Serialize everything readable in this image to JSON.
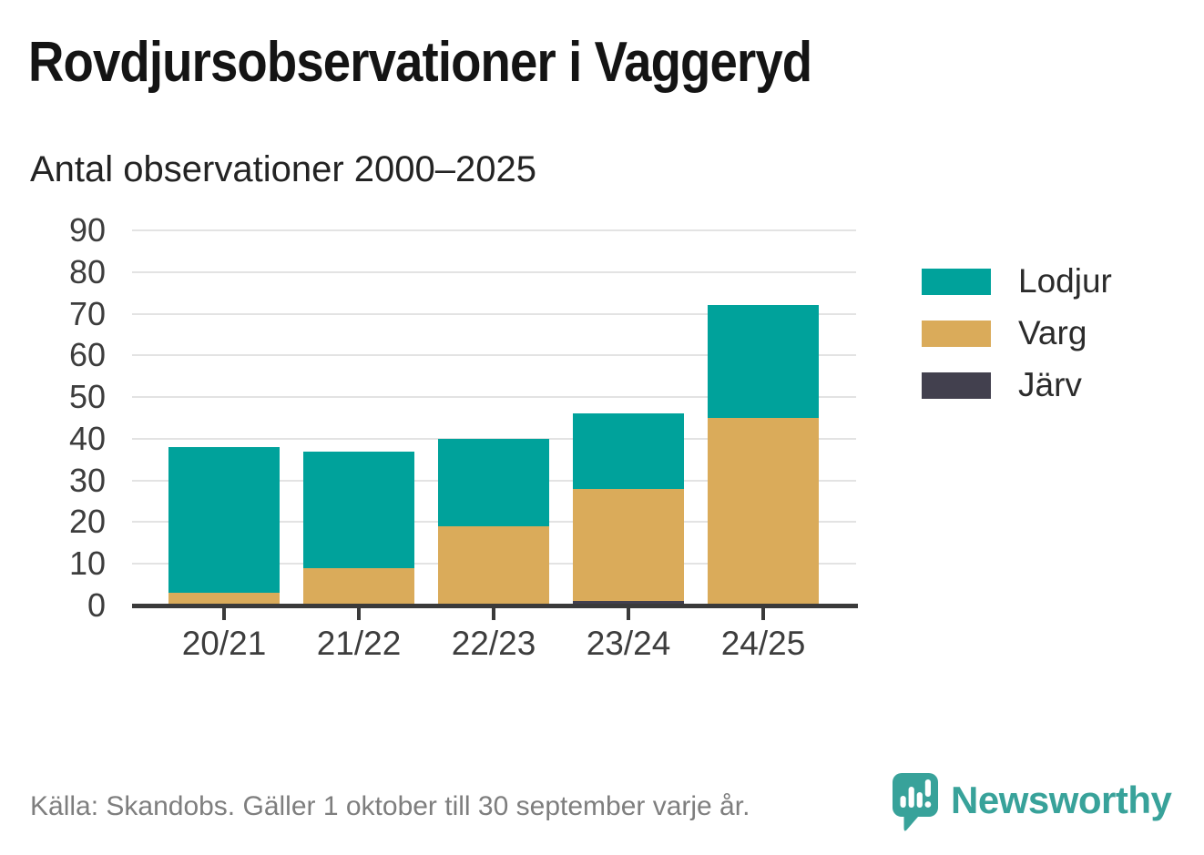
{
  "header": {
    "title": "Rovdjursobservationer i Vaggeryd"
  },
  "chart_data": {
    "type": "bar",
    "stacked": true,
    "title": "Rovdjursobservationer i Vaggeryd",
    "subtitle": "Antal observationer 2000–2025",
    "categories": [
      "20/21",
      "21/22",
      "22/23",
      "23/24",
      "24/25"
    ],
    "series": [
      {
        "name": "Lodjur",
        "color": "#00a29b",
        "values": [
          35,
          28,
          21,
          18,
          27
        ]
      },
      {
        "name": "Varg",
        "color": "#daab5a",
        "values": [
          3,
          9,
          19,
          27,
          45
        ]
      },
      {
        "name": "Järv",
        "color": "#42404e",
        "values": [
          0,
          0,
          0,
          1,
          0
        ]
      }
    ],
    "totals": [
      38,
      37,
      40,
      46,
      72
    ],
    "ylabel": "",
    "xlabel": "",
    "ylim": [
      0,
      90
    ],
    "yticks": [
      0,
      10,
      20,
      30,
      40,
      50,
      60,
      70,
      80,
      90
    ],
    "grid": "horizontal",
    "legend_position": "right"
  },
  "footer": {
    "source": "Källa: Skandobs. Gäller 1 oktober till 30 september varje år.",
    "brand": "Newsworthy"
  },
  "colors": {
    "lodjur": "#00a29b",
    "varg": "#daab5a",
    "jarv": "#42404e",
    "axis": "#3a3a3a",
    "grid": "#e3e3e3",
    "tick_text": "#3d3d3d",
    "muted_text": "#7e7e7e",
    "brand_teal": "#38a29a"
  }
}
